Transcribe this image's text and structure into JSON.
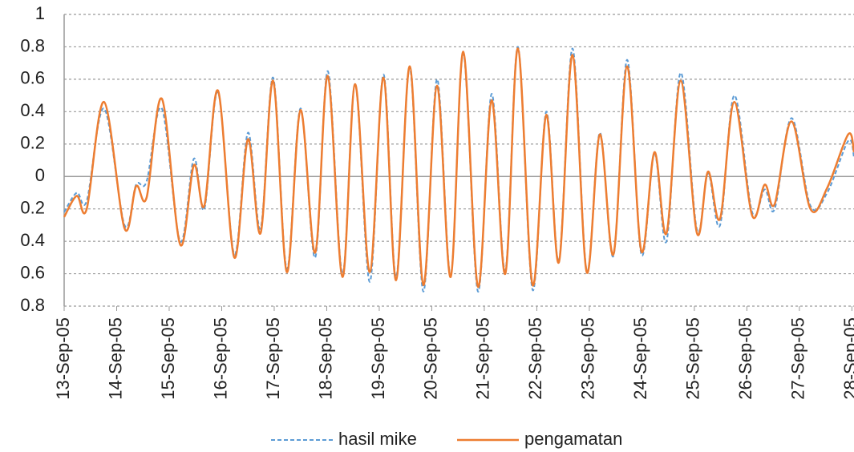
{
  "chart_data": {
    "type": "line",
    "x": [
      0,
      0.24,
      0.43,
      0.76,
      1.15,
      1.37,
      1.57,
      1.86,
      2.21,
      2.47,
      2.67,
      2.93,
      3.24,
      3.5,
      3.74,
      3.98,
      4.24,
      4.5,
      4.78,
      5.02,
      5.3,
      5.54,
      5.82,
      6.08,
      6.32,
      6.58,
      6.84,
      7.1,
      7.36,
      7.6,
      7.88,
      8.14,
      8.4,
      8.64,
      8.92,
      9.18,
      9.42,
      9.68,
      9.95,
      10.2,
      10.46,
      10.72,
      10.99,
      11.24,
      11.47,
      11.74,
      12.05,
      12.26,
      12.49,
      12.76,
      13.1,
      13.34,
      13.53,
      13.85,
      14.21,
      14.53,
      14.93,
      15.04
    ],
    "series": [
      {
        "name": "hasil mike",
        "color": "#5b9bd5",
        "dashed": true,
        "values": [
          -0.22,
          -0.1,
          -0.15,
          0.42,
          -0.3,
          -0.05,
          -0.03,
          0.42,
          -0.4,
          0.11,
          -0.2,
          0.52,
          -0.48,
          0.27,
          -0.32,
          0.61,
          -0.57,
          0.42,
          -0.5,
          0.65,
          -0.6,
          0.57,
          -0.65,
          0.63,
          -0.62,
          0.67,
          -0.71,
          0.6,
          -0.61,
          0.76,
          -0.71,
          0.51,
          -0.58,
          0.8,
          -0.7,
          0.4,
          -0.52,
          0.79,
          -0.58,
          0.27,
          -0.49,
          0.72,
          -0.48,
          0.14,
          -0.4,
          0.64,
          -0.33,
          0.02,
          -0.3,
          0.5,
          -0.22,
          -0.08,
          -0.2,
          0.36,
          -0.18,
          -0.1,
          0.22,
          0.12
        ]
      },
      {
        "name": "pengamatan",
        "color": "#ed7d31",
        "dashed": false,
        "values": [
          -0.25,
          -0.12,
          -0.2,
          0.46,
          -0.32,
          -0.06,
          -0.13,
          0.48,
          -0.42,
          0.07,
          -0.18,
          0.53,
          -0.5,
          0.23,
          -0.35,
          0.59,
          -0.59,
          0.41,
          -0.47,
          0.62,
          -0.62,
          0.57,
          -0.59,
          0.61,
          -0.64,
          0.68,
          -0.67,
          0.56,
          -0.62,
          0.77,
          -0.68,
          0.47,
          -0.6,
          0.79,
          -0.67,
          0.38,
          -0.53,
          0.75,
          -0.59,
          0.26,
          -0.48,
          0.68,
          -0.46,
          0.15,
          -0.35,
          0.59,
          -0.35,
          0.03,
          -0.26,
          0.46,
          -0.24,
          -0.05,
          -0.17,
          0.34,
          -0.2,
          -0.07,
          0.26,
          0.15
        ]
      }
    ],
    "xlim": [
      0,
      15.04
    ],
    "xticks": [
      {
        "value": 0,
        "label": "13-Sep-05"
      },
      {
        "value": 1,
        "label": "14-Sep-05"
      },
      {
        "value": 2,
        "label": "15-Sep-05"
      },
      {
        "value": 3,
        "label": "16-Sep-05"
      },
      {
        "value": 4,
        "label": "17-Sep-05"
      },
      {
        "value": 5,
        "label": "18-Sep-05"
      },
      {
        "value": 6,
        "label": "19-Sep-05"
      },
      {
        "value": 7,
        "label": "20-Sep-05"
      },
      {
        "value": 8,
        "label": "21-Sep-05"
      },
      {
        "value": 9,
        "label": "22-Sep-05"
      },
      {
        "value": 10,
        "label": "23-Sep-05"
      },
      {
        "value": 11,
        "label": "24-Sep-05"
      },
      {
        "value": 12,
        "label": "25-Sep-05"
      },
      {
        "value": 13,
        "label": "26-Sep-05"
      },
      {
        "value": 14,
        "label": "27-Sep-05"
      },
      {
        "value": 15,
        "label": "28-Sep-05"
      }
    ],
    "ylim": [
      -0.8,
      1
    ],
    "yticks": [
      {
        "value": -0.8,
        "label": "0.8"
      },
      {
        "value": -0.6,
        "label": "0.6"
      },
      {
        "value": -0.4,
        "label": "0.4"
      },
      {
        "value": -0.2,
        "label": "0.2"
      },
      0,
      0.2,
      0.4,
      0.6,
      0.8,
      1
    ],
    "grid": true,
    "legend": "bottom"
  }
}
